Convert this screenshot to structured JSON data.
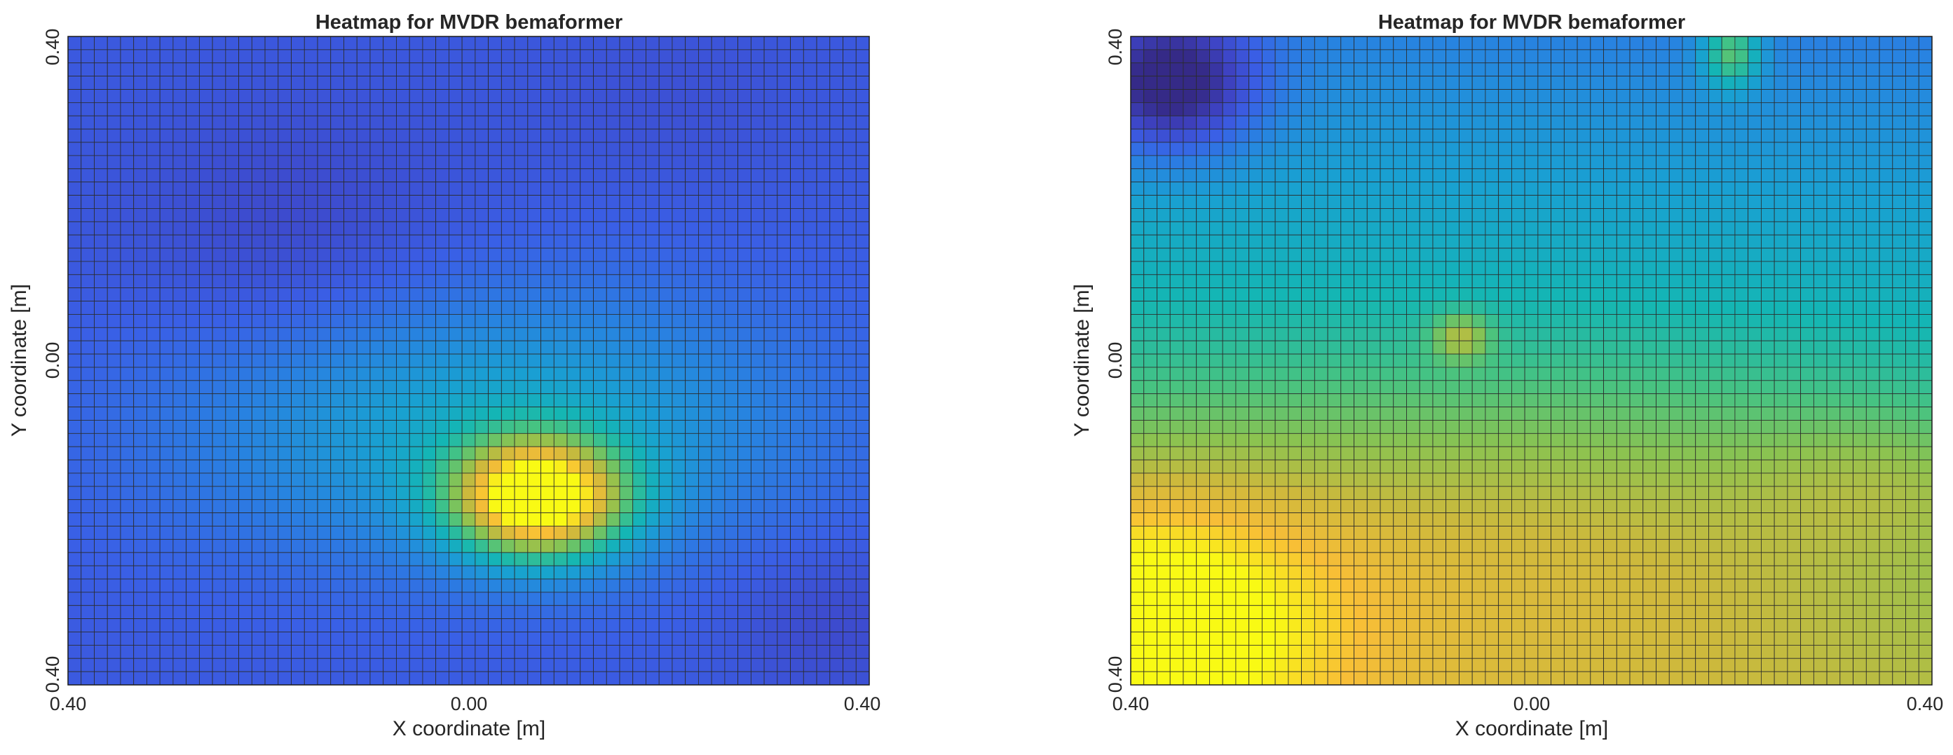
{
  "chart_data": [
    {
      "type": "heatmap",
      "title": "Heatmap for MVDR bemaformer",
      "xlabel": "X coordinate [m]",
      "ylabel": "Y coordinate [m]",
      "xlim": [
        -0.4,
        0.4
      ],
      "ylim": [
        -0.4,
        0.4
      ],
      "x_ticks": [
        "0.40",
        "0.00",
        "0.40"
      ],
      "y_ticks": [
        "0.40",
        "0.00",
        "0.40"
      ],
      "grid_resolution": [
        61,
        49
      ],
      "colormap": "parula",
      "grid": true,
      "colorbar": false,
      "legend": "none",
      "intensity_model": {
        "base": 0.18,
        "features": [
          {
            "x": 0.07,
            "y": -0.17,
            "amp": 0.85,
            "sx": 0.06,
            "sy": 0.05
          },
          {
            "x": 0.02,
            "y": -0.08,
            "amp": 0.25,
            "sx": 0.22,
            "sy": 0.12
          },
          {
            "x": -0.17,
            "y": 0.14,
            "amp": -0.07,
            "sx": 0.12,
            "sy": 0.12
          },
          {
            "x": 0.36,
            "y": -0.32,
            "amp": -0.06,
            "sx": 0.07,
            "sy": 0.07
          },
          {
            "x": 0.2,
            "y": 0.32,
            "amp": -0.03,
            "sx": 0.1,
            "sy": 0.08
          }
        ],
        "x_gradient": 0,
        "y_gradient": 0
      }
    },
    {
      "type": "heatmap",
      "title": "Heatmap for MVDR bemaformer",
      "xlabel": "X coordinate [m]",
      "ylabel": "Y coordinate [m]",
      "xlim": [
        -0.4,
        0.4
      ],
      "ylim": [
        -0.4,
        0.4
      ],
      "x_ticks": [
        "0.40",
        "0.00",
        "0.40"
      ],
      "y_ticks": [
        "0.40",
        "0.00",
        "0.40"
      ],
      "grid_resolution": [
        61,
        49
      ],
      "colormap": "parula",
      "grid": true,
      "colorbar": false,
      "legend": "none",
      "intensity_model": {
        "base": 0.52,
        "features": [
          {
            "x": -0.4,
            "y": -0.32,
            "amp": 0.35,
            "sx": 0.14,
            "sy": 0.12
          },
          {
            "x": 0.0,
            "y": -0.22,
            "amp": 0.16,
            "sx": 0.3,
            "sy": 0.15
          },
          {
            "x": 0.35,
            "y": -0.15,
            "amp": 0.08,
            "sx": 0.09,
            "sy": 0.06
          },
          {
            "x": -0.36,
            "y": 0.34,
            "amp": -0.4,
            "sx": 0.06,
            "sy": 0.06
          },
          {
            "x": 0.2,
            "y": 0.38,
            "amp": 0.32,
            "sx": 0.02,
            "sy": 0.03
          },
          {
            "x": -0.07,
            "y": 0.03,
            "amp": 0.22,
            "sx": 0.02,
            "sy": 0.02
          }
        ],
        "x_gradient": -0.03,
        "y_gradient": -0.55
      }
    }
  ]
}
